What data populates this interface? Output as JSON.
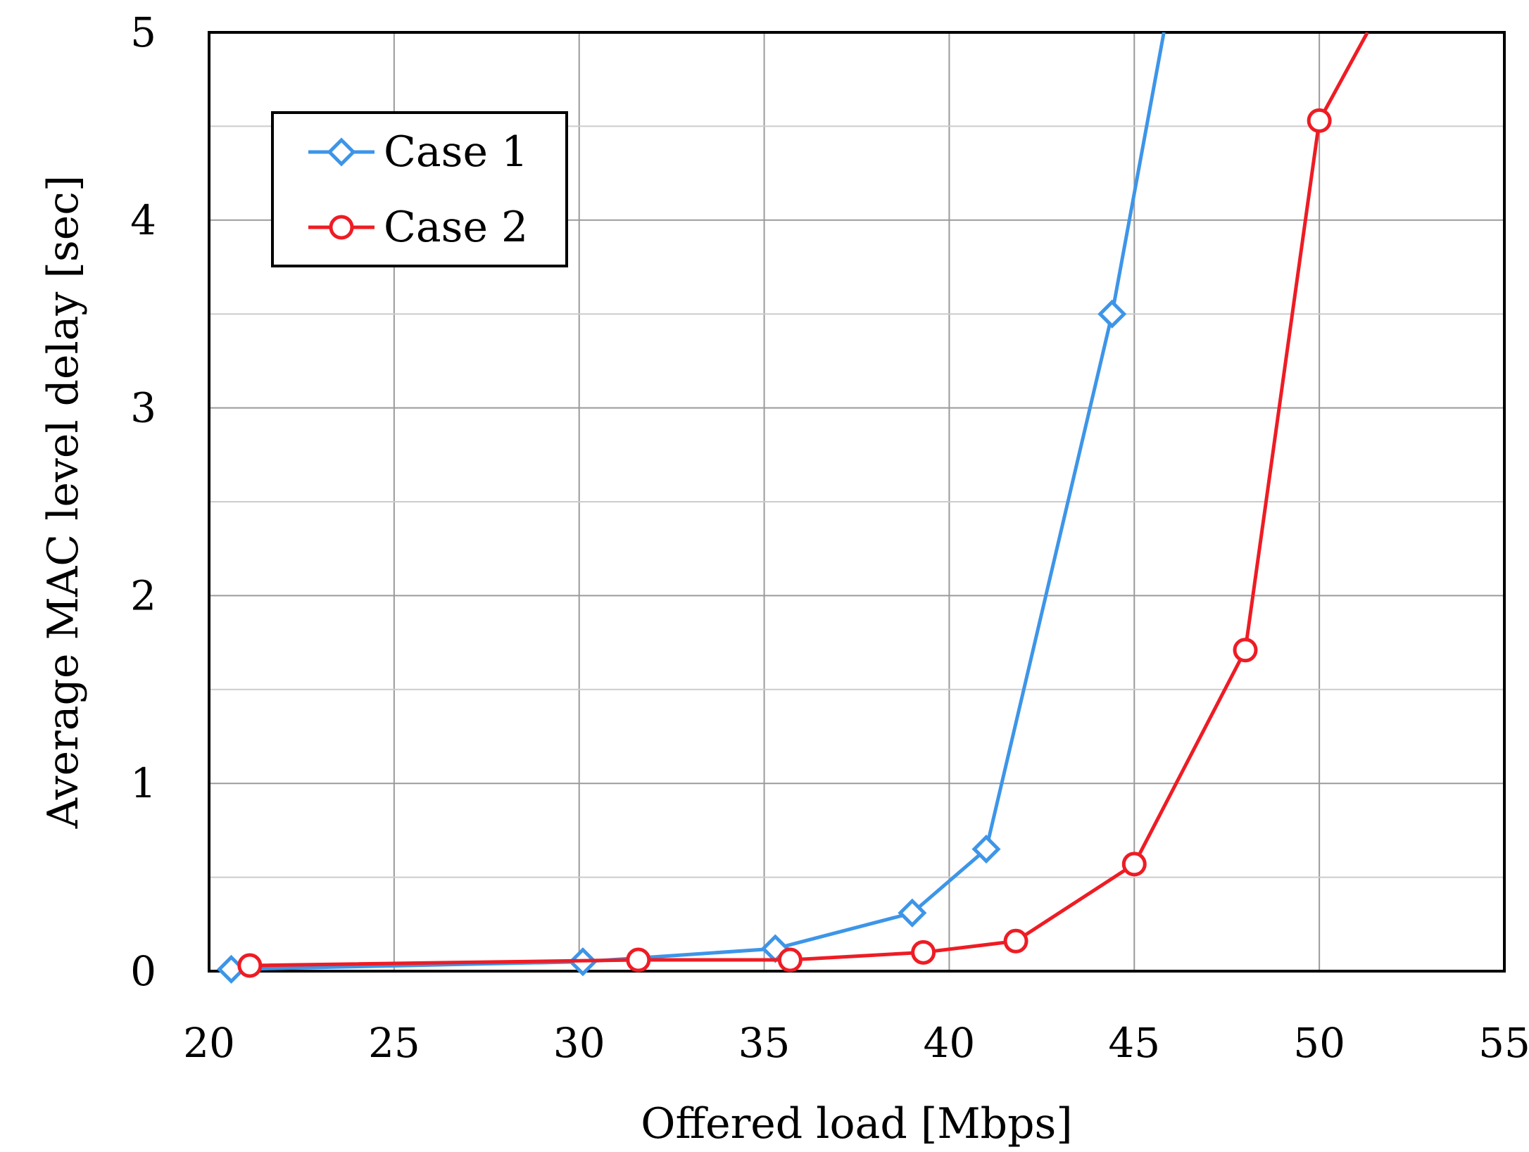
{
  "chart_data": {
    "type": "line",
    "title": "",
    "xlabel": "Offered load [Mbps]",
    "ylabel": "Average MAC level delay [sec]",
    "xlim": [
      20,
      55
    ],
    "ylim": [
      0,
      5
    ],
    "x_ticks": [
      20,
      25,
      30,
      35,
      40,
      45,
      50,
      55
    ],
    "x_tick_labels": [
      "20",
      "25",
      "30",
      "35",
      "40",
      "45",
      "50",
      "55"
    ],
    "y_ticks": [
      0,
      1,
      2,
      3,
      4,
      5
    ],
    "y_tick_labels": [
      "0",
      "1",
      "2",
      "3",
      "4",
      "5"
    ],
    "y_minor_gridlines": [
      0.5,
      1.5,
      2.5,
      3.5,
      4.5
    ],
    "grid": true,
    "legend_position": "top-left",
    "series": [
      {
        "name": "Case 1",
        "color": "#3d95e8",
        "marker": "diamond",
        "points": [
          {
            "x": 20.6,
            "y": 0.01
          },
          {
            "x": 30.1,
            "y": 0.05
          },
          {
            "x": 35.3,
            "y": 0.12
          },
          {
            "x": 39.0,
            "y": 0.31
          },
          {
            "x": 41.0,
            "y": 0.65
          },
          {
            "x": 44.4,
            "y": 3.5
          }
        ],
        "line_end": {
          "x": 45.8,
          "y": 5.0
        }
      },
      {
        "name": "Case 2",
        "color": "#ee1c24",
        "marker": "circle",
        "points": [
          {
            "x": 21.1,
            "y": 0.03
          },
          {
            "x": 31.6,
            "y": 0.06
          },
          {
            "x": 35.7,
            "y": 0.06
          },
          {
            "x": 39.3,
            "y": 0.1
          },
          {
            "x": 41.8,
            "y": 0.16
          },
          {
            "x": 45.0,
            "y": 0.57
          },
          {
            "x": 48.0,
            "y": 1.71
          },
          {
            "x": 50.0,
            "y": 4.53
          }
        ],
        "line_end": {
          "x": 51.3,
          "y": 5.0
        }
      }
    ]
  }
}
